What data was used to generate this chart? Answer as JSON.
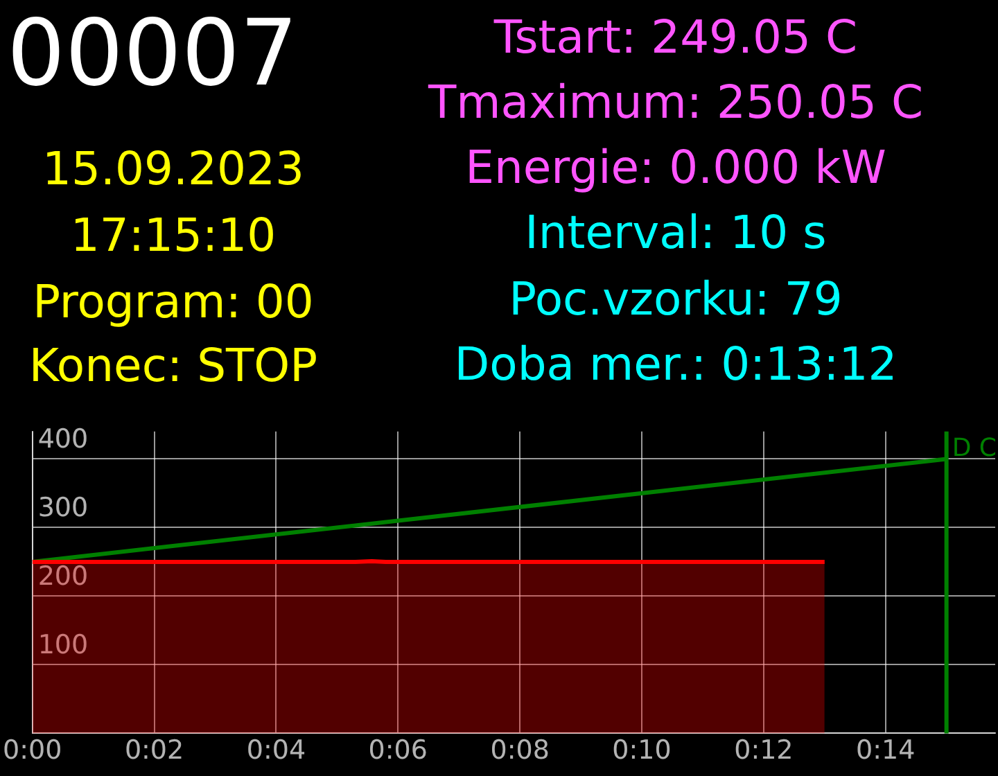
{
  "chart_data": {
    "type": "area",
    "annotations": [
      "00007",
      "15.09.2023",
      "17:15:10",
      "Program: 00",
      "Konec: STOP",
      "Tstart: 249.05 C",
      "Tmaximum: 250.05 C",
      "Energie: 0.000 kW",
      "Interval: 10 s",
      "Poc.vzorku: 79",
      "Doba mer.: 0:13:12"
    ],
    "series": [
      {
        "color": "#ff0000",
        "x": [
          0,
          5.3,
          5.57,
          5.8,
          13
        ],
        "values": [
          250,
          250,
          251,
          250,
          250
        ]
      },
      {
        "type": "line",
        "color": "#008000",
        "x": [
          0,
          15
        ],
        "values": [
          250,
          400
        ]
      }
    ],
    "xlim": [
      0,
      15.8
    ],
    "xticks": [
      {
        "value": 0,
        "label": "0:00"
      },
      {
        "value": 2,
        "label": "0:02"
      },
      {
        "value": 4,
        "label": "0:04"
      },
      {
        "value": 6,
        "label": "0:06"
      },
      {
        "value": 8,
        "label": "0:08"
      },
      {
        "value": 10,
        "label": "0:10"
      },
      {
        "value": 12,
        "label": "0:12"
      },
      {
        "value": 14,
        "label": "0:14"
      }
    ],
    "ylim": [
      0,
      440
    ],
    "yticks": [
      {
        "value": 0,
        "label": null
      },
      100,
      200,
      300,
      400
    ],
    "ref_lines": [
      {
        "axis": "x",
        "value": 15,
        "label": "D C",
        "color": "#008000"
      }
    ],
    "grid": true,
    "legend": false,
    "marker": "none"
  }
}
